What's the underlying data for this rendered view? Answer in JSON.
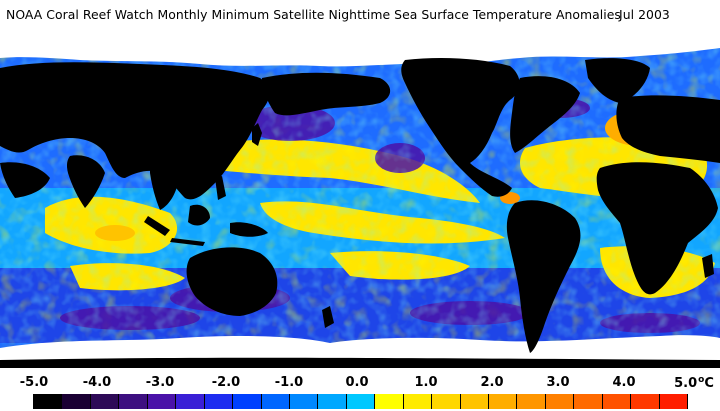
{
  "title": {
    "text": "NOAA Coral Reef Watch Monthly Minimum Satellite Nighttime Sea Surface Temperature Anomalies",
    "date": "Jul 2003"
  },
  "map": {
    "land_color": "#000000",
    "ice_color": "#ffffff"
  },
  "legend": {
    "ticks": [
      "-5.0",
      "-4.0",
      "-3.0",
      "-2.0",
      "-1.0",
      "0.0",
      "1.0",
      "2.0",
      "3.0",
      "4.0",
      "5.0"
    ],
    "unit_degree": "o",
    "unit_letter": "C",
    "colors": [
      "#000000",
      "#1a0033",
      "#2e0a57",
      "#3d0f80",
      "#4a12a8",
      "#3a1fd6",
      "#1e2cf0",
      "#0040ff",
      "#0066ff",
      "#0088ff",
      "#00a8ff",
      "#00c8ff",
      "#ffff00",
      "#ffeb00",
      "#ffd700",
      "#ffc300",
      "#ffad00",
      "#ff9600",
      "#ff8000",
      "#ff6a00",
      "#ff5200",
      "#ff3800",
      "#ff1e00"
    ]
  }
}
